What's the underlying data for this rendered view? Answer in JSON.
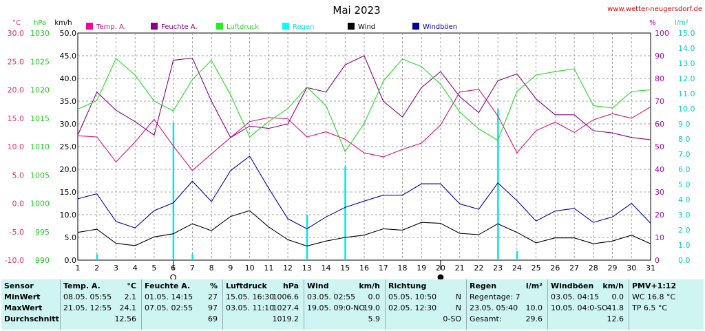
{
  "chart_data": {
    "type": "line",
    "title": "Mai 2023",
    "source": "www.wetter-neugersdorf.de",
    "x": [
      1,
      2,
      3,
      4,
      5,
      6,
      7,
      8,
      9,
      10,
      11,
      12,
      13,
      14,
      15,
      16,
      17,
      18,
      19,
      20,
      21,
      22,
      23,
      24,
      25,
      26,
      27,
      28,
      29,
      30,
      31
    ],
    "axes": {
      "temp": {
        "unit": "°C",
        "min": -10,
        "max": 30,
        "ticks": [
          "30.0",
          "25.0",
          "20.0",
          "15.0",
          "10.0",
          "5.0",
          "0.0",
          "-5.0",
          "-10.0"
        ],
        "color": "#cc0066"
      },
      "pressure": {
        "unit": "hPa",
        "min": 990,
        "max": 1030,
        "ticks": [
          "1030",
          "1025",
          "1020",
          "1015",
          "1010",
          "1005",
          "1000",
          "995",
          "990"
        ],
        "color": "#00aa00"
      },
      "wind": {
        "unit": "km/h",
        "min": 0,
        "max": 50,
        "ticks": [
          "50.0",
          "45.0",
          "40.0",
          "35.0",
          "30.0",
          "25.0",
          "20.0",
          "15.0",
          "10.0",
          "5.0",
          "0.0"
        ],
        "color": "#000000"
      },
      "humidity": {
        "unit": "%",
        "min": 0,
        "max": 100,
        "ticks": [
          "100",
          "90",
          "80",
          "70",
          "60",
          "50",
          "40",
          "30",
          "20",
          "10",
          "0"
        ],
        "color": "#aa0088"
      },
      "rain": {
        "unit": "l/m²",
        "min": 0,
        "max": 15,
        "ticks": [
          "15.0",
          "14.0",
          "13.0",
          "12.0",
          "11.0",
          "10.0",
          "9.0",
          "8.0",
          "7.0",
          "6.0",
          "5.0",
          "4.0",
          "3.0",
          "2.0",
          "1.0",
          "0.0"
        ],
        "color": "#00cccc"
      }
    },
    "series": [
      {
        "name": "Temp. A.",
        "color": "#dd1177",
        "axis": "temp",
        "values": [
          11.9,
          11.7,
          7.3,
          10.8,
          14.8,
          10.1,
          5.8,
          8.7,
          11.6,
          14.4,
          15.1,
          14.9,
          11.7,
          12.6,
          11.3,
          8.9,
          8.2,
          9.5,
          10.6,
          13.8,
          19.6,
          20.1,
          15.4,
          8.9,
          12.8,
          14.3,
          12.5,
          14.7,
          15.8,
          15.0,
          17.0
        ]
      },
      {
        "name": "Feuchte A.",
        "color": "#880088",
        "axis": "humidity",
        "values": [
          55,
          74,
          66,
          61,
          55,
          88,
          89,
          70,
          54,
          59,
          58,
          60,
          76,
          74,
          86,
          90,
          70,
          63,
          76,
          83,
          72,
          65,
          79,
          82,
          71,
          64,
          64,
          57,
          56,
          54,
          53
        ]
      },
      {
        "name": "Luftdruck",
        "color": "#22dd22",
        "axis": "pressure",
        "values": [
          1016.6,
          1018.1,
          1025.5,
          1022.6,
          1018.0,
          1016.3,
          1021.8,
          1025.2,
          1019.1,
          1011.7,
          1014.4,
          1016.7,
          1020.5,
          1017.2,
          1009.1,
          1014.1,
          1021.5,
          1025.4,
          1024.1,
          1021.0,
          1016.1,
          1013.1,
          1011.1,
          1019.7,
          1022.6,
          1023.2,
          1023.7,
          1017.2,
          1016.8,
          1019.7,
          1020.0
        ]
      },
      {
        "name": "Wind",
        "color": "#000000",
        "axis": "wind",
        "values": [
          6.1,
          6.8,
          3.7,
          3.2,
          5.1,
          5.8,
          8.0,
          6.5,
          9.6,
          10.9,
          7.3,
          4.5,
          3.1,
          4.2,
          5.0,
          5.5,
          6.9,
          6.6,
          8.3,
          8.1,
          5.9,
          5.6,
          8.0,
          6.1,
          3.8,
          4.9,
          4.9,
          3.6,
          4.2,
          5.5,
          3.6
        ]
      },
      {
        "name": "Windböen",
        "color": "#0000aa",
        "axis": "wind",
        "values": [
          13.5,
          14.6,
          8.5,
          7.1,
          10.9,
          12.6,
          17.4,
          12.9,
          19.7,
          22.9,
          15.8,
          9.1,
          6.9,
          9.5,
          11.6,
          13.0,
          14.3,
          14.3,
          16.8,
          16.8,
          12.4,
          11.2,
          17.0,
          13.1,
          8.6,
          10.8,
          11.4,
          8.3,
          9.5,
          12.5,
          8.1
        ]
      },
      {
        "name": "Regen",
        "color": "#00e5f0",
        "axis": "rain",
        "type": "bar",
        "values": [
          0,
          0.4,
          0,
          0,
          0,
          9.1,
          0.4,
          0,
          0,
          0,
          0,
          0,
          3.0,
          0,
          6.2,
          0,
          0,
          0,
          0,
          0,
          0,
          0,
          10.0,
          0.6,
          0,
          0,
          0,
          0,
          0,
          0,
          0
        ]
      }
    ],
    "moon": [
      {
        "day": 6,
        "phase": "full"
      },
      {
        "day": 20,
        "phase": "new"
      }
    ]
  },
  "stats": {
    "row_labels": [
      "Sensor",
      "MinWert",
      "MaxWert",
      "Durchschnitt"
    ],
    "columns": [
      {
        "name": "Temp. A.",
        "unit": "°C",
        "min": [
          "08.05.  05:55",
          "2.1"
        ],
        "max": [
          "21.05.  12:55",
          "24.1"
        ],
        "avg": [
          "",
          "12.56"
        ]
      },
      {
        "name": "Feuchte A.",
        "unit": "%",
        "min": [
          "01.05.  14:15",
          "27"
        ],
        "max": [
          "07.05.  02:55",
          "97"
        ],
        "avg": [
          "",
          "69"
        ]
      },
      {
        "name": "Luftdruck",
        "unit": "hPa",
        "min": [
          "15.05.  16:30",
          "1006.6"
        ],
        "max": [
          "03.05.  11:10",
          "1027.4"
        ],
        "avg": [
          "",
          "1019.2"
        ]
      },
      {
        "name": "Wind",
        "unit": "km/h",
        "min": [
          "03.05.  02:55",
          "0.0"
        ],
        "max": [
          "19.05.  09:0-NO",
          "19.0"
        ],
        "avg": [
          "",
          "5.9"
        ]
      },
      {
        "name": "Richtung",
        "unit": "",
        "min": [
          "05.05.  10:50",
          "N"
        ],
        "max": [
          "02.05.  12:30",
          "N"
        ],
        "avg": [
          "",
          "0-SO"
        ]
      },
      {
        "name": "Regen",
        "unit": "l/m²",
        "min": [
          "Regentage: 7",
          ""
        ],
        "max": [
          "23.05.  05:40",
          "10.0"
        ],
        "avg": [
          "Gesamt:",
          "29.6"
        ]
      },
      {
        "name": "Windböen",
        "unit": "km/h",
        "min": [
          "03.05.  04:15",
          "0.0"
        ],
        "max": [
          "10.05.  04:0-SO",
          "41.8"
        ],
        "avg": [
          "",
          "12.6"
        ]
      },
      {
        "name": "PMV+1:12",
        "unit": "",
        "min": [
          "WC 16.8 °C",
          ""
        ],
        "max": [
          "TP 6.5 °C",
          ""
        ],
        "avg": [
          "",
          ""
        ]
      }
    ]
  }
}
